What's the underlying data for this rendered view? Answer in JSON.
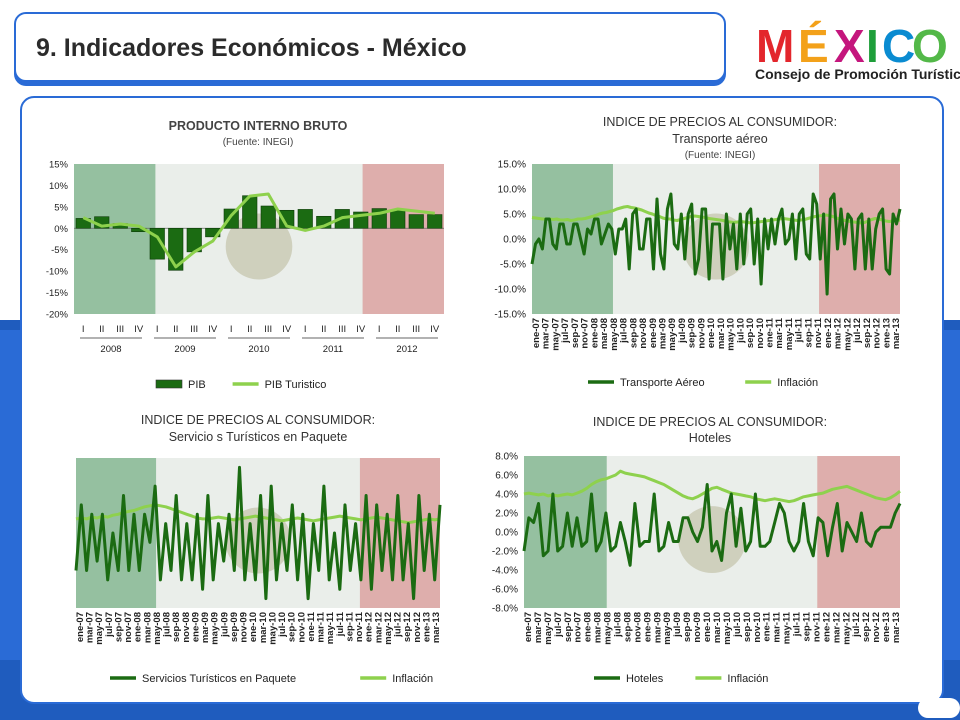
{
  "page_title": "9. Indicadores Económicos  - México",
  "logo": {
    "word": "MÉXICO",
    "subtitle": "Consejo de Promoción Turística"
  },
  "colors": {
    "dark_green": "#1b6b12",
    "light_green": "#8ed14d",
    "blue": "#2a6bd6"
  },
  "chart_data": [
    {
      "type": "bar",
      "title": "PRODUCTO INTERNO BRUTO",
      "subtitle": "(Fuente: INEGI)",
      "categories": [
        "I",
        "II",
        "III",
        "IV",
        "I",
        "II",
        "III",
        "IV",
        "I",
        "II",
        "III",
        "IV",
        "I",
        "II",
        "III",
        "IV",
        "I",
        "II",
        "III",
        "IV"
      ],
      "years": [
        "2008",
        "2009",
        "2010",
        "2011",
        "2012"
      ],
      "yticks": [
        "15%",
        "10%",
        "5%",
        "0%",
        "-5%",
        "-10%",
        "-15%",
        "-20%"
      ],
      "ylim": [
        -20,
        15
      ],
      "series": [
        {
          "name": "PIB",
          "values": [
            2.3,
            2.7,
            1.1,
            -0.8,
            -7.2,
            -9.8,
            -5.5,
            -2.0,
            4.5,
            7.6,
            5.2,
            4.2,
            4.4,
            2.8,
            4.4,
            3.8,
            4.6,
            4.2,
            3.2,
            3.2
          ]
        },
        {
          "name": "PIB Turistico",
          "values": [
            2.5,
            0.5,
            1.0,
            0.5,
            -2.0,
            -9.0,
            -5.5,
            -3.0,
            3.0,
            7.5,
            8.0,
            0.5,
            -0.5,
            0.5,
            2.5,
            3.0,
            3.5,
            4.5,
            4.0,
            3.5
          ]
        }
      ]
    },
    {
      "type": "line",
      "title": "INDICE DE PRECIOS AL CONSUMIDOR:",
      "subtitle": "Transporte aéreo",
      "source": "(Fuente: INEGI)",
      "xticks": [
        "ene-07",
        "mar-07",
        "may-07",
        "jul-07",
        "sep-07",
        "nov-07",
        "ene-08",
        "mar-08",
        "may-08",
        "jul-08",
        "sep-08",
        "nov-08",
        "ene-09",
        "mar-09",
        "may-09",
        "jul-09",
        "sep-09",
        "nov-09",
        "ene-10",
        "mar-10",
        "may-10",
        "jul-10",
        "sep-10",
        "nov-10",
        "ene-11",
        "mar-11",
        "may-11",
        "jul-11",
        "sep-11",
        "nov-11",
        "ene-12",
        "mar-12",
        "may-12",
        "jul-12",
        "sep-12",
        "nov-12",
        "ene-13",
        "mar-13"
      ],
      "yticks": [
        "15.0%",
        "10.0%",
        "5.0%",
        "0.0%",
        "-5.0%",
        "-10.0%",
        "-15.0%"
      ],
      "ylim": [
        -15,
        15
      ],
      "series": [
        {
          "name": "Transporte Aéreo",
          "values": [
            -5,
            -1,
            0,
            -2,
            4,
            4,
            -1,
            -2,
            3,
            3,
            -1,
            -1,
            3,
            3,
            0,
            -3,
            2,
            1,
            4,
            4,
            -1,
            1,
            3,
            2,
            -3,
            2,
            2,
            4,
            -6,
            5,
            6,
            -2,
            -2,
            4,
            4,
            -6,
            8,
            -3,
            -6,
            6,
            9,
            -1,
            -2,
            5,
            -4,
            5,
            7,
            -7,
            -4,
            6,
            6,
            -8,
            3,
            3,
            3,
            -8,
            5,
            -2,
            3,
            -6,
            5,
            -5,
            5,
            6,
            -5,
            4,
            -9,
            4,
            -2,
            4,
            -1,
            4,
            6,
            -1,
            0,
            5,
            -4,
            5,
            6,
            -3,
            -4,
            9,
            7,
            -4,
            5,
            -11,
            8,
            9,
            -2,
            6,
            -1,
            5,
            4,
            -6,
            4,
            5,
            -6,
            4,
            -6,
            2,
            5,
            6,
            -6,
            -7,
            5,
            3,
            6
          ]
        },
        {
          "name": "Inflación",
          "values": [
            4.3,
            4.2,
            4.1,
            4.0,
            4.0,
            4.0,
            3.9,
            4.0,
            3.8,
            3.8,
            3.9,
            3.7,
            3.8,
            4.0,
            4.0,
            4.1,
            4.3,
            4.5,
            4.7,
            5.0,
            5.2,
            5.3,
            5.5,
            5.7,
            6.0,
            6.2,
            6.4,
            6.5,
            6.3,
            6.2,
            6.0,
            5.8,
            5.5,
            5.2,
            5.0,
            4.7,
            4.5,
            4.2,
            4.0,
            4.0,
            3.8,
            3.7,
            3.9,
            4.1,
            4.3,
            4.5,
            4.6,
            4.5,
            4.4,
            4.3,
            4.1,
            4.0,
            3.9,
            3.8,
            3.7,
            3.5,
            3.4,
            3.3,
            3.4,
            3.5,
            3.4,
            3.3,
            3.2,
            3.3,
            3.4,
            3.5,
            3.6,
            3.7,
            3.8,
            3.9,
            4.0,
            4.1,
            4.0,
            3.9,
            3.8,
            3.7,
            3.8,
            3.9,
            4.1,
            4.3,
            4.5,
            4.6,
            4.7,
            4.8,
            4.7,
            4.5,
            4.2,
            4.0,
            3.8,
            3.6,
            3.5,
            3.4,
            3.3,
            3.2,
            3.3,
            3.6,
            3.9,
            4.1,
            4.0,
            3.8,
            3.6,
            3.5,
            3.6,
            3.7,
            3.8
          ]
        }
      ]
    },
    {
      "type": "line",
      "title": "INDICE DE PRECIOS AL CONSUMIDOR:",
      "subtitle": "Servicio s Turísticos en Paquete",
      "xticks": [
        "ene-07",
        "mar-07",
        "may-07",
        "jul-07",
        "sep-07",
        "nov-07",
        "ene-08",
        "mar-08",
        "may-08",
        "jul-08",
        "sep-08",
        "nov-08",
        "ene-09",
        "mar-09",
        "may-09",
        "jul-09",
        "sep-09",
        "nov-09",
        "ene-10",
        "mar-10",
        "may-10",
        "jul-10",
        "sep-10",
        "nov-10",
        "ene-11",
        "mar-11",
        "may-11",
        "jul-11",
        "sep-11",
        "nov-11",
        "ene-12",
        "mar-12",
        "may-12",
        "jul-12",
        "sep-12",
        "nov-12",
        "ene-13",
        "mar-13"
      ],
      "ylim": [
        -8,
        8
      ],
      "series": [
        {
          "name": "Servicios Turísticos en Paquete",
          "values": [
            -4,
            3,
            -4,
            2,
            -3,
            2,
            -5,
            0,
            -4,
            4,
            -4,
            2,
            -4,
            2,
            -1,
            5,
            -5,
            1,
            -4,
            4,
            -5,
            1,
            -5,
            2,
            -6,
            4,
            -5,
            1,
            -3,
            2,
            -4,
            7,
            -5,
            1,
            -5,
            4,
            -7,
            5,
            -5,
            1,
            -4,
            3,
            -5,
            2,
            -7,
            1,
            -4,
            5,
            -5,
            0,
            -6,
            3,
            -4,
            1,
            -5,
            4,
            -6,
            3,
            -4,
            2,
            -5,
            4,
            -5,
            1,
            -7,
            4,
            -4,
            2,
            -5,
            3
          ]
        },
        {
          "name": "Inflación",
          "values": [
            1.5,
            1.6,
            1.5,
            1.7,
            1.6,
            1.8,
            1.7,
            1.9,
            2.0,
            2.2,
            2.3,
            2.4,
            2.6,
            2.8,
            2.9,
            3.0,
            2.9,
            2.8,
            2.6,
            2.4,
            2.2,
            2.0,
            1.8,
            1.6,
            1.5,
            1.5,
            1.6,
            1.7,
            1.6,
            1.5,
            1.4,
            1.5,
            1.6,
            1.7,
            1.8,
            1.7,
            1.6,
            1.5,
            1.4,
            1.3,
            1.4,
            1.5,
            1.6,
            1.5,
            1.4,
            1.3,
            1.4,
            1.5,
            1.6,
            1.7,
            1.8,
            1.7,
            1.6,
            1.5,
            1.4,
            1.5,
            1.6,
            1.7,
            1.6,
            1.5,
            1.4,
            1.3,
            1.2,
            1.1,
            1.2,
            1.3,
            1.4,
            1.5,
            1.4,
            1.5
          ]
        }
      ]
    },
    {
      "type": "line",
      "title": "INDICE DE PRECIOS AL CONSUMIDOR:",
      "subtitle": "Hoteles",
      "xticks": [
        "ene-07",
        "mar-07",
        "may-07",
        "jul-07",
        "sep-07",
        "nov-07",
        "ene-08",
        "mar-08",
        "may-08",
        "jul-08",
        "sep-08",
        "nov-08",
        "ene-09",
        "mar-09",
        "may-09",
        "jul-09",
        "sep-09",
        "nov-09",
        "ene-10",
        "mar-10",
        "may-10",
        "jul-10",
        "sep-10",
        "nov-10",
        "ene-11",
        "mar-11",
        "may-11",
        "jul-11",
        "sep-11",
        "nov-11",
        "ene-12",
        "mar-12",
        "may-12",
        "jul-12",
        "sep-12",
        "nov-12",
        "ene-13",
        "mar-13"
      ],
      "yticks": [
        "8.0%",
        "6.0%",
        "4.0%",
        "2.0%",
        "0.0%",
        "-2.0%",
        "-4.0%",
        "-6.0%",
        "-8.0%"
      ],
      "ylim": [
        -8,
        8
      ],
      "series": [
        {
          "name": "Hoteles",
          "values": [
            -2,
            1.5,
            1,
            3,
            -2.5,
            -2,
            4,
            -2,
            -1.5,
            2,
            -1.5,
            1.5,
            -1.5,
            -1,
            4,
            -2,
            -1,
            2,
            -2,
            -1.5,
            1,
            -1,
            -3.5,
            3,
            -1.5,
            -1,
            -1,
            4,
            -2,
            -1.5,
            1,
            -1,
            -1,
            1.5,
            1.5,
            0,
            -1,
            0.5,
            5,
            -2,
            -1,
            -3,
            2,
            4,
            -1.5,
            2.5,
            -2,
            -1,
            4,
            -1.5,
            -1.5,
            -1,
            1,
            3,
            2,
            -1,
            -2,
            -1,
            3,
            -1,
            -2.5,
            1.5,
            1,
            -2.5,
            0.5,
            3,
            -2,
            1,
            0,
            -1,
            2,
            -1,
            -1.5,
            0,
            0.5,
            0.5,
            0.5,
            2,
            3
          ]
        },
        {
          "name": "Inflación",
          "values": [
            4,
            4.1,
            4.0,
            3.9,
            4.0,
            3.8,
            3.9,
            3.8,
            3.9,
            4.0,
            3.9,
            4.1,
            4.3,
            4.6,
            5.0,
            5.3,
            5.5,
            5.6,
            5.8,
            6.0,
            6.4,
            6.2,
            6.1,
            6.0,
            5.9,
            5.8,
            5.6,
            5.4,
            5.2,
            5.0,
            4.7,
            4.4,
            4.1,
            3.8,
            3.6,
            3.5,
            3.7,
            4.0,
            4.3,
            4.6,
            4.7,
            4.5,
            4.3,
            4.1,
            4.0,
            3.9,
            3.8,
            3.7,
            3.5,
            3.4,
            3.3,
            3.4,
            3.5,
            3.4,
            3.3,
            3.2,
            3.3,
            3.5,
            3.7,
            3.8,
            3.9,
            4.0,
            4.1,
            4.3,
            4.5,
            4.6,
            4.7,
            4.8,
            4.6,
            4.4,
            4.2,
            4.0,
            3.8,
            3.6,
            3.5,
            3.4,
            3.6,
            3.9,
            4.3
          ]
        }
      ]
    }
  ]
}
